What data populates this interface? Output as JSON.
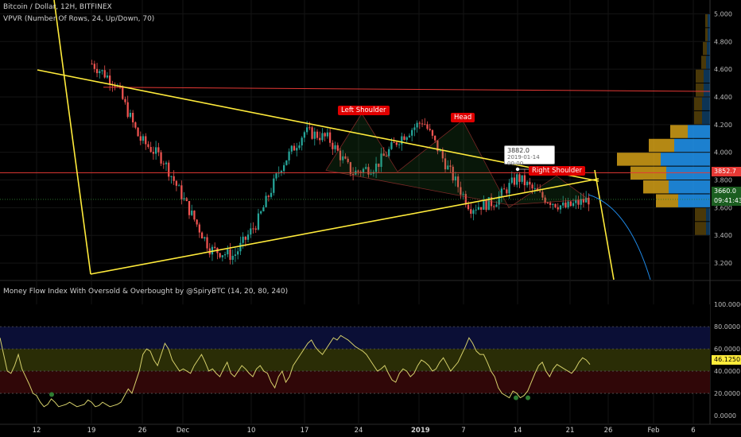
{
  "header": {
    "symbol_line": "Bitcoin / Dollar, 12H, BITFINEX",
    "indicator_line": "VPVR (Number Of Rows, 24, Up/Down, 70)"
  },
  "mfi_header": "Money Flow Index With Oversold & Overbought by @SpiryBTC (14, 20, 80, 240)",
  "annotations": {
    "left_shoulder": "Left Shoulder",
    "head": "Head",
    "right_shoulder": "Right Shoulder"
  },
  "tooltip": {
    "price": "3882.0",
    "time": "2019-01-14 00:00"
  },
  "price_badges": {
    "red": "3852.7",
    "green_price": "3660.0",
    "green_timer": "09:41:43"
  },
  "mfi_badge": "46.1250",
  "x_axis": [
    {
      "label": "12",
      "x": 46
    },
    {
      "label": "19",
      "x": 115
    },
    {
      "label": "26",
      "x": 179
    },
    {
      "label": "Dec",
      "x": 230
    },
    {
      "label": "10",
      "x": 316
    },
    {
      "label": "17",
      "x": 383
    },
    {
      "label": "24",
      "x": 451
    },
    {
      "label": "2019",
      "x": 527
    },
    {
      "label": "7",
      "x": 583
    },
    {
      "label": "14",
      "x": 651
    },
    {
      "label": "21",
      "x": 717
    },
    {
      "label": "26",
      "x": 765
    },
    {
      "label": "Feb",
      "x": 822
    },
    {
      "label": "6",
      "x": 872
    }
  ],
  "colors": {
    "up": "#26a69a",
    "down": "#ef5350",
    "trendline": "#ffeb3b",
    "resistance": "#e53935",
    "curve": "#1e88e5",
    "vp_up": "#2196f3",
    "vp_down": "#d4a017"
  },
  "chart_data": [
    {
      "type": "candlestick",
      "title": "Bitcoin / Dollar, 12H, BITFINEX",
      "y_axis": {
        "ticks": [
          3200,
          3400,
          3600,
          3800,
          4000,
          4200,
          4400,
          4600,
          4800,
          5000
        ],
        "ylim": [
          3080,
          5100
        ]
      },
      "price_lines": {
        "resistance_high": 4440,
        "resistance_mid": 3852.7,
        "current": 3660.0
      },
      "trendlines": [
        {
          "name": "upper",
          "from": [
            "2018-11-14",
            4640
          ],
          "to": [
            "2019-01-26",
            3800
          ]
        },
        {
          "name": "lower",
          "from": [
            "2018-11-19",
            3110
          ],
          "to": [
            "2019-01-26",
            3820
          ]
        },
        {
          "name": "left",
          "from": [
            "2018-11-12",
            5100
          ],
          "to": [
            "2018-11-19",
            3110
          ]
        },
        {
          "name": "right",
          "from": [
            "2019-01-25",
            3820
          ],
          "to": [
            "2019-01-27",
            3080
          ]
        }
      ],
      "volume_profile": [
        {
          "price": 3450,
          "up": 0.05,
          "down": 0.14
        },
        {
          "price": 3550,
          "up": 0.05,
          "down": 0.14
        },
        {
          "price": 3650,
          "up": 0.4,
          "down": 0.28
        },
        {
          "price": 3750,
          "up": 0.52,
          "down": 0.32
        },
        {
          "price": 3850,
          "up": 0.55,
          "down": 0.45
        },
        {
          "price": 3950,
          "up": 0.62,
          "down": 0.55
        },
        {
          "price": 4050,
          "up": 0.45,
          "down": 0.32
        },
        {
          "price": 4150,
          "up": 0.28,
          "down": 0.22
        },
        {
          "price": 4250,
          "up": 0.1,
          "down": 0.1
        },
        {
          "price": 4350,
          "up": 0.1,
          "down": 0.1
        },
        {
          "price": 4450,
          "up": 0.08,
          "down": 0.1
        },
        {
          "price": 4550,
          "up": 0.08,
          "down": 0.1
        },
        {
          "price": 4650,
          "up": 0.05,
          "down": 0.06
        },
        {
          "price": 4750,
          "up": 0.04,
          "down": 0.05
        },
        {
          "price": 4850,
          "up": 0.03,
          "down": 0.03
        },
        {
          "price": 4950,
          "up": 0.03,
          "down": 0.03
        }
      ],
      "pivot_path": [
        4640,
        4500,
        4100,
        3950,
        3620,
        3300,
        3250,
        3500,
        3900,
        4150,
        4100,
        3850,
        3900,
        4100,
        4230,
        3900,
        3600,
        3640,
        3820,
        3680,
        3600,
        3660
      ]
    },
    {
      "type": "line",
      "title": "Money Flow Index With Oversold & Overbought by @SpiryBTC (14, 20, 80, 240)",
      "y_axis": {
        "ticks": [
          0,
          20,
          40,
          60,
          80,
          100
        ],
        "labels": [
          "0.0000",
          "20.0000",
          "40.0000",
          "60.0000",
          "80.0000",
          "100.0000"
        ],
        "ylim": [
          -5,
          108
        ]
      },
      "bands": {
        "overbought": 80,
        "upper_mid": 60,
        "lower_mid": 40,
        "oversold": 20
      },
      "values": [
        70,
        55,
        40,
        38,
        45,
        55,
        42,
        35,
        28,
        20,
        18,
        12,
        8,
        10,
        15,
        12,
        8,
        9,
        10,
        12,
        10,
        8,
        9,
        10,
        14,
        12,
        8,
        9,
        12,
        10,
        8,
        9,
        10,
        12,
        18,
        24,
        20,
        30,
        40,
        55,
        60,
        58,
        50,
        45,
        55,
        65,
        60,
        50,
        45,
        40,
        42,
        40,
        38,
        45,
        50,
        55,
        48,
        40,
        42,
        38,
        35,
        42,
        48,
        38,
        35,
        40,
        45,
        42,
        38,
        35,
        42,
        45,
        40,
        38,
        30,
        25,
        35,
        40,
        30,
        35,
        45,
        50,
        55,
        60,
        65,
        68,
        62,
        58,
        55,
        60,
        65,
        70,
        68,
        72,
        70,
        68,
        65,
        62,
        60,
        58,
        55,
        50,
        45,
        40,
        42,
        45,
        38,
        32,
        30,
        38,
        42,
        40,
        35,
        38,
        45,
        50,
        48,
        45,
        40,
        42,
        48,
        52,
        46,
        40,
        44,
        48,
        55,
        62,
        70,
        65,
        58,
        55,
        55,
        48,
        40,
        35,
        25,
        20,
        18,
        16,
        22,
        20,
        16,
        18,
        22,
        30,
        38,
        45,
        48,
        40,
        35,
        42,
        46,
        44,
        42,
        40,
        38,
        42,
        48,
        52,
        50,
        46
      ]
    }
  ]
}
